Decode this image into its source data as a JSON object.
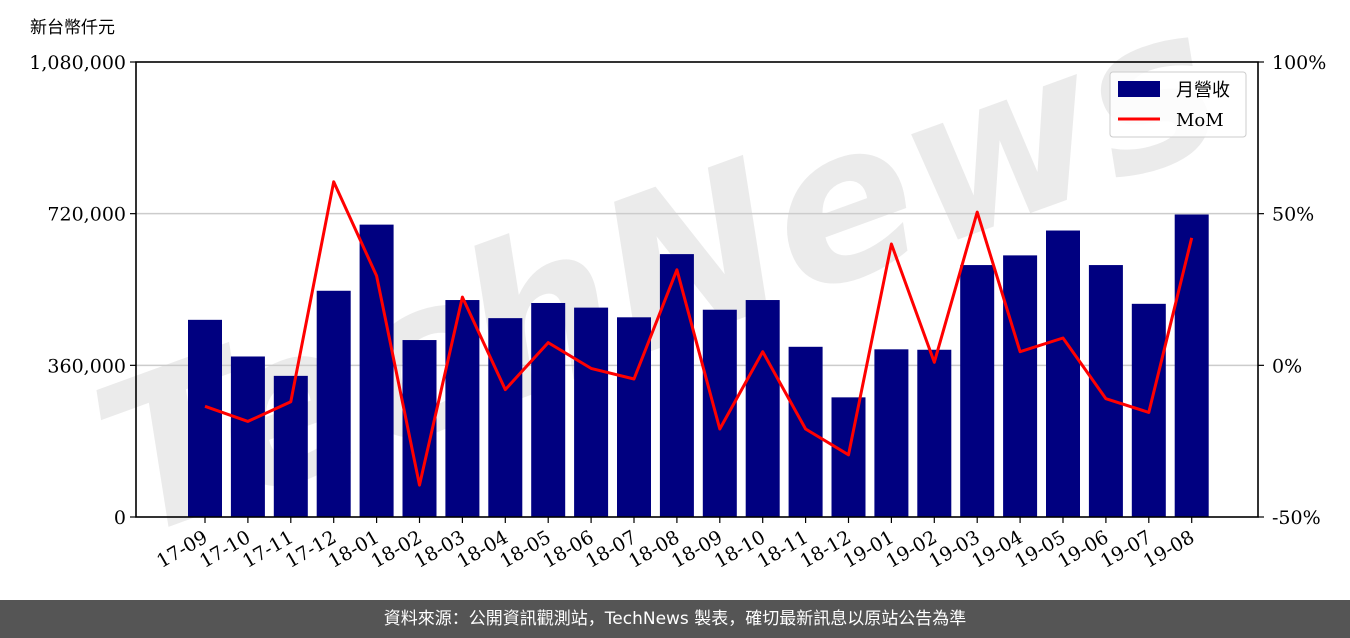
{
  "chart_data": {
    "type": "bar",
    "y_unit_label": "新台幣仟元",
    "categories": [
      "17-09",
      "17-10",
      "17-11",
      "17-12",
      "18-01",
      "18-02",
      "18-03",
      "18-04",
      "18-05",
      "18-06",
      "18-07",
      "18-08",
      "18-09",
      "18-10",
      "18-11",
      "18-12",
      "19-01",
      "19-02",
      "19-03",
      "19-04",
      "19-05",
      "19-06",
      "19-07",
      "19-08"
    ],
    "series": [
      {
        "name": "月營收",
        "type": "bar",
        "axis": "left",
        "color": "#000080",
        "values": [
          468000,
          381000,
          335000,
          537000,
          694000,
          420000,
          515000,
          472000,
          508000,
          497000,
          474000,
          624000,
          492000,
          515000,
          404000,
          284000,
          398000,
          397000,
          598000,
          621000,
          680000,
          598000,
          506000,
          718000
        ]
      },
      {
        "name": "MoM",
        "type": "line",
        "axis": "right",
        "color": "#ff0000",
        "values": [
          -13.5,
          -18.5,
          -12,
          60.5,
          29.5,
          -39.5,
          22.5,
          -8,
          7.5,
          -1,
          -4.5,
          31.5,
          -21,
          4.5,
          -21,
          -29.5,
          40,
          1,
          50.5,
          4.5,
          9,
          -11,
          -15.5,
          42
        ]
      }
    ],
    "y_left": {
      "min": 0,
      "max": 1080000,
      "ticks": [
        "0",
        "360,000",
        "720,000",
        "1,080,000"
      ],
      "tick_values": [
        0,
        360000,
        720000,
        1080000
      ]
    },
    "y_right": {
      "min": -50,
      "max": 100,
      "ticks": [
        "-50%",
        "0%",
        "50%",
        "100%"
      ],
      "tick_values": [
        -50,
        0,
        50,
        100
      ]
    },
    "grid": "horizontal",
    "legend_position": "top-right",
    "watermark": "TechNews"
  },
  "footer": {
    "text": "資料來源：公開資訊觀測站，TechNews 製表，確切最新訊息以原站公告為準"
  }
}
